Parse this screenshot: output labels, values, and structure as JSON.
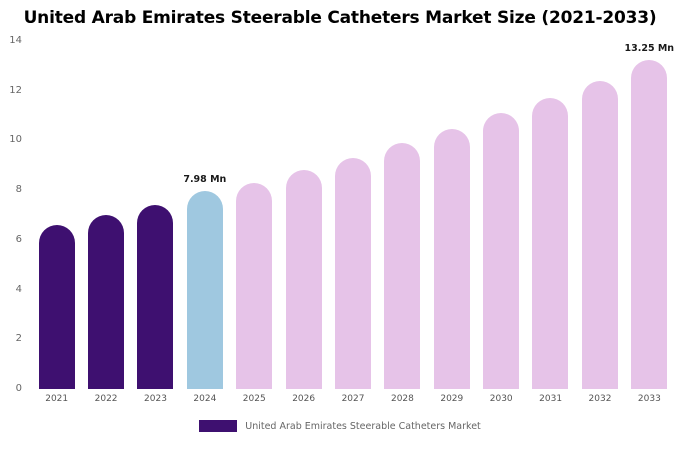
{
  "chart_data": {
    "type": "bar",
    "title": "United Arab Emirates Steerable Catheters Market Size (2021-2033)",
    "categories": [
      "2021",
      "2022",
      "2023",
      "2024",
      "2025",
      "2026",
      "2027",
      "2028",
      "2029",
      "2030",
      "2031",
      "2032",
      "2033"
    ],
    "values": [
      6.6,
      7.0,
      7.4,
      7.98,
      8.3,
      8.8,
      9.3,
      9.9,
      10.45,
      11.1,
      11.7,
      12.4,
      13.25
    ],
    "unit": "Mn",
    "xlabel": "",
    "ylabel": "",
    "ylim": [
      0,
      14
    ],
    "yticks": [
      0,
      2,
      4,
      6,
      8,
      10,
      12,
      14
    ],
    "grid": false,
    "bar_roles": [
      "historical",
      "historical",
      "historical",
      "current",
      "forecast",
      "forecast",
      "forecast",
      "forecast",
      "forecast",
      "forecast",
      "forecast",
      "forecast",
      "forecast"
    ],
    "colors": {
      "historical": "#3e1070",
      "current": "#9fc8e0",
      "forecast": "#e6c3e8"
    },
    "annotations": [
      {
        "category": "2024",
        "text": "7.98 Mn"
      },
      {
        "category": "2033",
        "text": "13.25 Mn"
      }
    ],
    "legend_position": "bottom"
  },
  "legend": {
    "label": "United Arab Emirates Steerable Catheters Market",
    "swatch_color": "#3e1070"
  }
}
